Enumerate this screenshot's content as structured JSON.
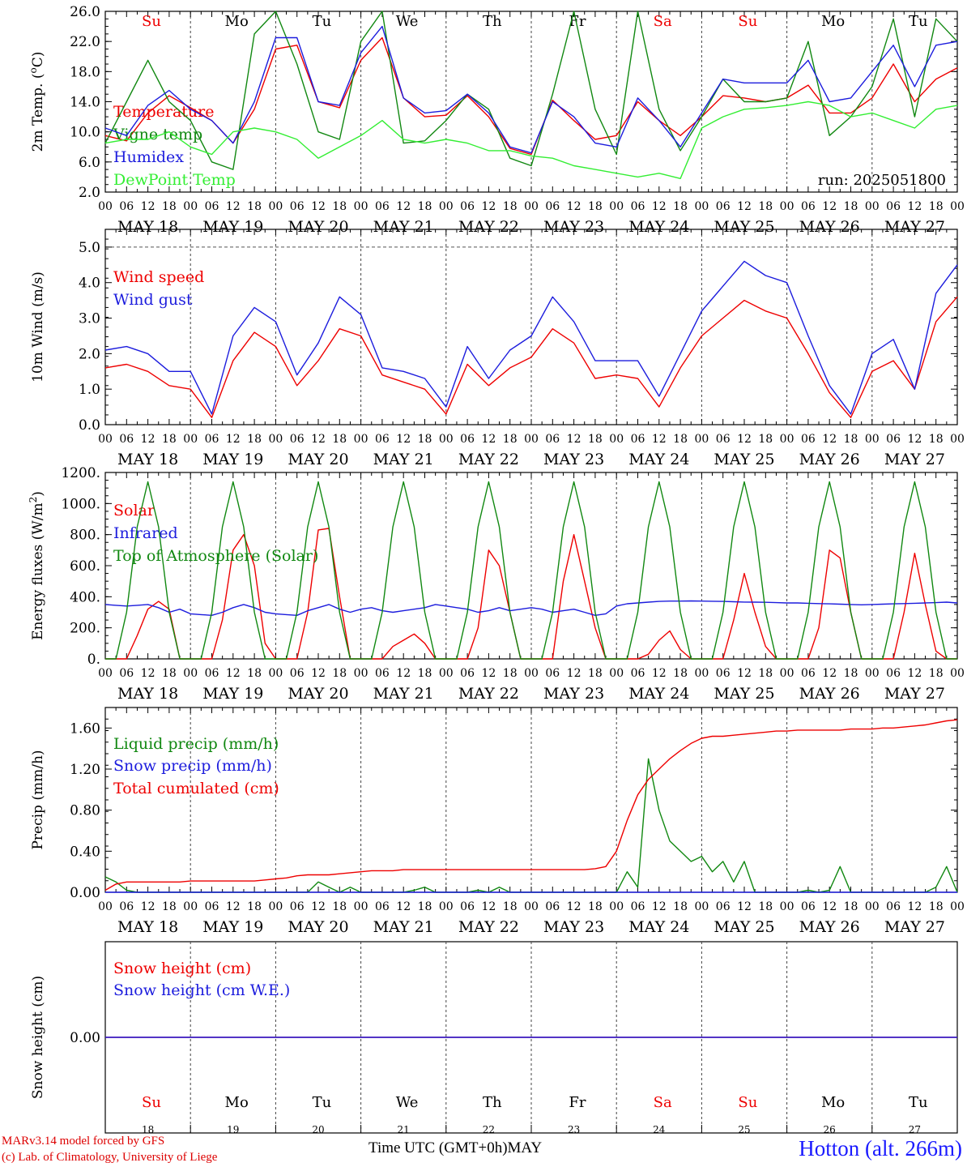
{
  "chart_data": [
    {
      "type": "line",
      "ylabel": "2m Temp. (oC)",
      "ylabel_main": "2m Temp. (",
      "ylabel_sup": "o",
      "ylabel_tail": "C)",
      "ylim": [
        2.0,
        26.0
      ],
      "yticks": [
        "2.0",
        "6.0",
        "10.0",
        "14.0",
        "18.0",
        "22.0",
        "26.0"
      ],
      "annotation": "run: 2025051800",
      "show_weekdays": true,
      "x_hours": [
        0,
        6,
        12,
        18,
        24,
        30,
        36,
        42,
        48,
        54,
        60,
        66,
        72,
        78,
        84,
        90,
        96,
        102,
        108,
        114,
        120,
        126,
        132,
        138,
        144,
        150,
        156,
        162,
        168,
        174,
        180,
        186,
        192,
        198,
        204,
        210,
        216,
        222,
        228,
        234,
        240
      ],
      "series": [
        {
          "name": "Temperature",
          "color": "#ee0000",
          "values": [
            9.5,
            8.8,
            12.5,
            14.8,
            13.2,
            11.5,
            8.5,
            13.0,
            21.0,
            21.5,
            14.0,
            13.2,
            19.5,
            22.5,
            14.5,
            12.0,
            12.2,
            14.8,
            12.0,
            7.8,
            7.0,
            14.2,
            11.5,
            9.0,
            9.5,
            14.0,
            11.5,
            9.5,
            12.0,
            14.8,
            14.5,
            14.0,
            14.5,
            16.2,
            12.5,
            12.5,
            14.5,
            19.0,
            14.0,
            17.0,
            18.5
          ]
        },
        {
          "name": "Vigne temp",
          "color": "#118811",
          "values": [
            8.5,
            14.0,
            19.5,
            14.0,
            11.5,
            6.0,
            5.0,
            23.0,
            26.0,
            19.0,
            10.0,
            9.0,
            22.0,
            26.0,
            8.5,
            8.8,
            11.5,
            15.0,
            13.0,
            6.5,
            5.5,
            15.0,
            26.0,
            13.0,
            7.0,
            26.0,
            13.0,
            7.5,
            12.0,
            17.0,
            14.0,
            14.0,
            14.5,
            22.0,
            9.5,
            12.0,
            16.0,
            25.0,
            12.0,
            25.0,
            22.0
          ]
        },
        {
          "name": "Humidex",
          "color": "#1c1cdd",
          "values": [
            10.5,
            9.5,
            13.5,
            15.5,
            13.0,
            11.5,
            8.5,
            14.0,
            22.5,
            22.5,
            14.0,
            13.5,
            20.5,
            24.0,
            14.5,
            12.5,
            12.8,
            15.0,
            12.5,
            8.0,
            7.2,
            14.0,
            12.0,
            8.5,
            8.0,
            14.5,
            11.5,
            8.0,
            12.5,
            17.0,
            16.5,
            16.5,
            16.5,
            19.5,
            14.0,
            14.5,
            18.0,
            21.5,
            16.0,
            21.5,
            22.0
          ]
        },
        {
          "name": "DewPoint Temp",
          "color": "#33ee33",
          "values": [
            8.5,
            9.0,
            9.0,
            10.0,
            8.0,
            7.0,
            10.0,
            10.5,
            10.0,
            9.0,
            6.5,
            8.0,
            9.5,
            11.5,
            9.0,
            8.5,
            9.0,
            8.5,
            7.5,
            7.5,
            6.8,
            6.5,
            5.5,
            5.0,
            4.5,
            4.0,
            4.5,
            3.8,
            10.5,
            12.0,
            13.0,
            13.2,
            13.5,
            14.0,
            13.5,
            12.0,
            12.5,
            11.5,
            10.5,
            13.0,
            13.5
          ]
        }
      ]
    },
    {
      "type": "line",
      "ylabel": "10m Wind (m/s)",
      "ylim": [
        0.0,
        5.5
      ],
      "yticks": [
        "0.0",
        "1.0",
        "2.0",
        "3.0",
        "4.0",
        "5.0"
      ],
      "dashed_level": 5.0,
      "x_hours": [
        0,
        6,
        12,
        18,
        24,
        30,
        36,
        42,
        48,
        54,
        60,
        66,
        72,
        78,
        84,
        90,
        96,
        102,
        108,
        114,
        120,
        126,
        132,
        138,
        144,
        150,
        156,
        162,
        168,
        174,
        180,
        186,
        192,
        198,
        204,
        210,
        216,
        222,
        228,
        234,
        240
      ],
      "series": [
        {
          "name": "Wind speed",
          "color": "#ee0000",
          "values": [
            1.6,
            1.7,
            1.5,
            1.1,
            1.0,
            0.2,
            1.8,
            2.6,
            2.2,
            1.1,
            1.8,
            2.7,
            2.5,
            1.4,
            1.2,
            1.0,
            0.3,
            1.7,
            1.1,
            1.6,
            1.9,
            2.7,
            2.3,
            1.3,
            1.4,
            1.3,
            0.5,
            1.6,
            2.5,
            3.0,
            3.5,
            3.2,
            3.0,
            2.0,
            0.9,
            0.2,
            1.5,
            1.8,
            1.0,
            2.9,
            3.6
          ]
        },
        {
          "name": "Wind gust",
          "color": "#1c1cdd",
          "values": [
            2.1,
            2.2,
            2.0,
            1.5,
            1.5,
            0.3,
            2.5,
            3.3,
            2.9,
            1.4,
            2.3,
            3.6,
            3.1,
            1.6,
            1.5,
            1.3,
            0.5,
            2.2,
            1.3,
            2.1,
            2.5,
            3.6,
            2.9,
            1.8,
            1.8,
            1.8,
            0.8,
            2.0,
            3.2,
            3.9,
            4.6,
            4.2,
            4.0,
            2.5,
            1.1,
            0.3,
            2.0,
            2.4,
            1.0,
            3.7,
            4.5
          ]
        }
      ]
    },
    {
      "type": "line",
      "ylabel": "Energy fluxes (W/m2)",
      "ylabel_main": "Energy fluxes (W/m",
      "ylabel_sup": "2",
      "ylabel_tail": ")",
      "ylim": [
        0,
        1200
      ],
      "yticks": [
        "0.",
        "200.",
        "400.",
        "600.",
        "800.",
        "1000.",
        "1200."
      ],
      "x_hours": [
        0,
        3,
        6,
        9,
        12,
        15,
        18,
        21,
        24,
        27,
        30,
        33,
        36,
        39,
        42,
        45,
        48,
        51,
        54,
        57,
        60,
        63,
        66,
        69,
        72,
        75,
        78,
        81,
        84,
        87,
        90,
        93,
        96,
        99,
        102,
        105,
        108,
        111,
        114,
        117,
        120,
        123,
        126,
        129,
        132,
        135,
        138,
        141,
        144,
        147,
        150,
        153,
        156,
        159,
        162,
        165,
        168,
        171,
        174,
        177,
        180,
        183,
        186,
        189,
        192,
        195,
        198,
        201,
        204,
        207,
        210,
        213,
        216,
        219,
        222,
        225,
        228,
        231,
        234,
        237,
        240
      ],
      "series": [
        {
          "name": "Solar",
          "color": "#ee0000",
          "values": [
            0,
            0,
            0,
            150,
            320,
            370,
            320,
            0,
            0,
            0,
            0,
            250,
            700,
            800,
            600,
            100,
            0,
            0,
            0,
            300,
            830,
            840,
            400,
            0,
            0,
            0,
            0,
            80,
            120,
            160,
            100,
            0,
            0,
            0,
            0,
            200,
            700,
            600,
            300,
            0,
            0,
            0,
            0,
            500,
            800,
            500,
            200,
            0,
            0,
            0,
            0,
            30,
            120,
            180,
            60,
            0,
            0,
            0,
            0,
            250,
            550,
            300,
            80,
            0,
            0,
            0,
            0,
            200,
            700,
            650,
            300,
            0,
            0,
            0,
            0,
            300,
            680,
            350,
            50,
            0,
            0
          ]
        },
        {
          "name": "Infrared",
          "color": "#1c1cdd",
          "values": [
            350,
            345,
            340,
            345,
            350,
            330,
            300,
            320,
            290,
            285,
            280,
            300,
            330,
            350,
            330,
            300,
            290,
            285,
            280,
            310,
            330,
            350,
            320,
            300,
            320,
            330,
            310,
            300,
            310,
            320,
            330,
            350,
            340,
            330,
            320,
            300,
            310,
            330,
            310,
            320,
            330,
            320,
            300,
            310,
            320,
            300,
            280,
            290,
            340,
            355,
            360,
            365,
            370,
            372,
            372,
            373,
            372,
            371,
            370,
            368,
            366,
            365,
            364,
            362,
            360,
            360,
            358,
            356,
            354,
            352,
            350,
            348,
            350,
            352,
            354,
            356,
            358,
            360,
            362,
            365,
            360
          ]
        },
        {
          "name": "Top of Atmosphere (Solar)",
          "color": "#118811",
          "values": [
            0,
            0,
            300,
            850,
            1140,
            850,
            300,
            0,
            0,
            0,
            300,
            850,
            1140,
            850,
            300,
            0,
            0,
            0,
            300,
            850,
            1140,
            850,
            300,
            0,
            0,
            0,
            300,
            850,
            1140,
            850,
            300,
            0,
            0,
            0,
            300,
            850,
            1140,
            850,
            300,
            0,
            0,
            0,
            300,
            850,
            1140,
            850,
            300,
            0,
            0,
            0,
            300,
            850,
            1140,
            850,
            300,
            0,
            0,
            0,
            300,
            850,
            1140,
            850,
            300,
            0,
            0,
            0,
            300,
            850,
            1140,
            850,
            300,
            0,
            0,
            0,
            300,
            850,
            1140,
            850,
            300,
            0,
            0
          ]
        }
      ]
    },
    {
      "type": "line",
      "ylabel": "Precip (mm/h)",
      "ylim": [
        0.0,
        1.8
      ],
      "yticks": [
        "0.00",
        "0.40",
        "0.80",
        "1.20",
        "1.60"
      ],
      "x_hours": [
        0,
        3,
        6,
        9,
        12,
        15,
        18,
        21,
        24,
        27,
        30,
        33,
        36,
        39,
        42,
        45,
        48,
        51,
        54,
        57,
        60,
        63,
        66,
        69,
        72,
        75,
        78,
        81,
        84,
        87,
        90,
        93,
        96,
        99,
        102,
        105,
        108,
        111,
        114,
        117,
        120,
        123,
        126,
        129,
        132,
        135,
        138,
        141,
        144,
        147,
        150,
        153,
        156,
        159,
        162,
        165,
        168,
        171,
        174,
        177,
        180,
        183,
        186,
        189,
        192,
        195,
        198,
        201,
        204,
        207,
        210,
        213,
        216,
        219,
        222,
        225,
        228,
        231,
        234,
        237,
        240
      ],
      "series": [
        {
          "name": "Liquid precip (mm/h)",
          "color": "#118811",
          "values": [
            0.15,
            0.1,
            0.02,
            0,
            0,
            0,
            0,
            0,
            0,
            0,
            0,
            0,
            0,
            0,
            0,
            0,
            0,
            0,
            0,
            0,
            0.1,
            0.05,
            0,
            0.05,
            0,
            0,
            0,
            0,
            0,
            0.02,
            0.05,
            0,
            0,
            0,
            0,
            0.02,
            0,
            0.05,
            0,
            0,
            0,
            0,
            0,
            0,
            0,
            0,
            0,
            0,
            0,
            0.2,
            0.05,
            1.3,
            0.8,
            0.5,
            0.4,
            0.3,
            0.35,
            0.2,
            0.3,
            0.1,
            0.3,
            0,
            0,
            0,
            0,
            0,
            0.02,
            0,
            0.02,
            0.25,
            0,
            0,
            0,
            0,
            0,
            0,
            0,
            0,
            0.05,
            0.25,
            0
          ]
        },
        {
          "name": "Snow precip (mm/h)",
          "color": "#1c1cdd",
          "values": [
            0,
            0,
            0,
            0,
            0,
            0,
            0,
            0,
            0,
            0,
            0,
            0,
            0,
            0,
            0,
            0,
            0,
            0,
            0,
            0,
            0,
            0,
            0,
            0,
            0,
            0,
            0,
            0,
            0,
            0,
            0,
            0,
            0,
            0,
            0,
            0,
            0,
            0,
            0,
            0,
            0,
            0,
            0,
            0,
            0,
            0,
            0,
            0,
            0,
            0,
            0,
            0,
            0,
            0,
            0,
            0,
            0,
            0,
            0,
            0,
            0,
            0,
            0,
            0,
            0,
            0,
            0,
            0,
            0,
            0,
            0,
            0,
            0,
            0,
            0,
            0,
            0,
            0,
            0,
            0,
            0
          ]
        },
        {
          "name": "Total cumulated (cm)",
          "color": "#ee0000",
          "values": [
            0.02,
            0.08,
            0.1,
            0.1,
            0.1,
            0.1,
            0.1,
            0.1,
            0.11,
            0.11,
            0.11,
            0.11,
            0.11,
            0.11,
            0.11,
            0.12,
            0.13,
            0.14,
            0.16,
            0.17,
            0.17,
            0.17,
            0.18,
            0.19,
            0.2,
            0.21,
            0.21,
            0.21,
            0.22,
            0.22,
            0.22,
            0.22,
            0.22,
            0.22,
            0.22,
            0.22,
            0.22,
            0.22,
            0.22,
            0.22,
            0.22,
            0.22,
            0.22,
            0.22,
            0.22,
            0.22,
            0.23,
            0.25,
            0.4,
            0.7,
            0.95,
            1.1,
            1.2,
            1.3,
            1.38,
            1.45,
            1.5,
            1.52,
            1.52,
            1.53,
            1.54,
            1.55,
            1.56,
            1.57,
            1.57,
            1.58,
            1.58,
            1.58,
            1.58,
            1.58,
            1.59,
            1.59,
            1.59,
            1.6,
            1.6,
            1.61,
            1.62,
            1.63,
            1.65,
            1.67,
            1.68
          ]
        }
      ]
    },
    {
      "type": "line",
      "ylabel": "Snow height (cm)",
      "ylim": [
        -1.0,
        1.0
      ],
      "yticks": [
        "0.00"
      ],
      "x_hours": [
        0,
        240
      ],
      "series": [
        {
          "name": "Snow height (cm)",
          "color": "#ee0000",
          "values": [
            0.0,
            0.0
          ]
        },
        {
          "name": "Snow height (cm W.E.)",
          "color": "#1c1cdd",
          "values": [
            0.0,
            0.0
          ]
        }
      ]
    }
  ],
  "hour_labels": [
    "00",
    "06",
    "12",
    "18"
  ],
  "final_hour_label": "00",
  "day_labels": [
    "MAY 18",
    "MAY 19",
    "MAY 20",
    "MAY 21",
    "MAY 22",
    "MAY 23",
    "MAY 24",
    "MAY 25",
    "MAY 26",
    "MAY 27"
  ],
  "weekdays": [
    {
      "label": "Su",
      "color": "#ee0000"
    },
    {
      "label": "Mo",
      "color": "#000000"
    },
    {
      "label": "Tu",
      "color": "#000000"
    },
    {
      "label": "We",
      "color": "#000000"
    },
    {
      "label": "Th",
      "color": "#000000"
    },
    {
      "label": "Fr",
      "color": "#000000"
    },
    {
      "label": "Sa",
      "color": "#ee0000"
    },
    {
      "label": "Su",
      "color": "#ee0000"
    },
    {
      "label": "Mo",
      "color": "#000000"
    },
    {
      "label": "Tu",
      "color": "#000000"
    }
  ],
  "day_numbers": [
    "18",
    "19",
    "20",
    "21",
    "22",
    "23",
    "24",
    "25",
    "26",
    "27"
  ],
  "footer": {
    "credit_line1": "MARv3.14 model forced by GFS",
    "credit_line2": "(c) Lab. of Climatology, University of Liege",
    "time_axis_label": "Time UTC (GMT+0h)",
    "month_label": "MAY",
    "station": "Hotton (alt. 266m)"
  }
}
